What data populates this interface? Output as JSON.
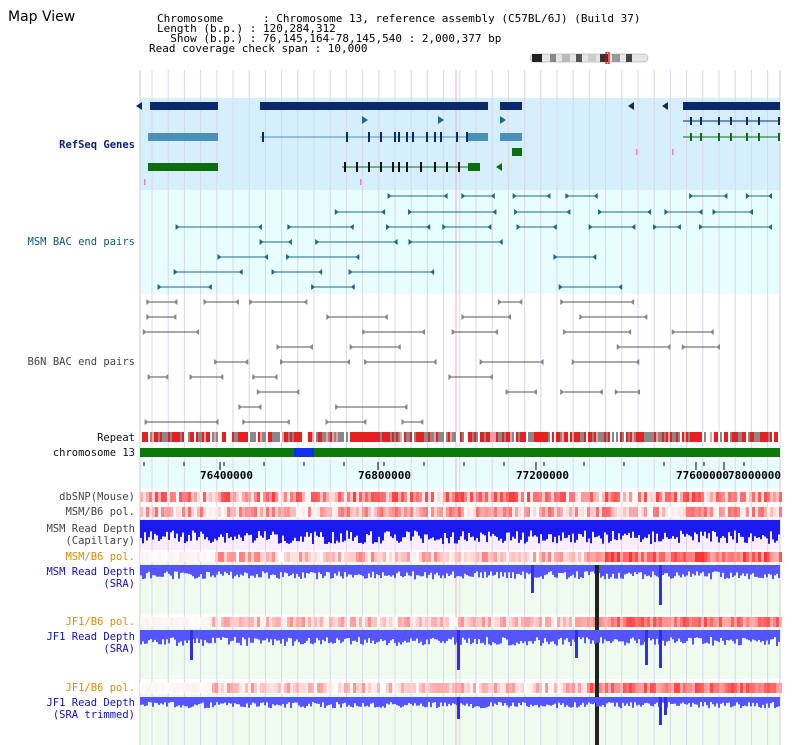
{
  "map_title": "Map View",
  "info": {
    "chromosome_line": "Chromosome      : Chromosome 13, reference assembly (C57BL/6J) (Build 37)",
    "length_line": "Length (b.p.) : 120,284,312",
    "show_line": "  Show (b.p.) : 76,145,164-78,145,540 : 2,000,377 bp",
    "span_line": "Read coverage check span : 10,000"
  },
  "tracks": {
    "refseq": "RefSeq Genes",
    "msm_bac": "MSM BAC end pairs",
    "b6n_bac": "B6N BAC end pairs",
    "repeat": "Repeat",
    "chromosome": "chromosome 13",
    "dbsnp": "dbSNP(Mouse)",
    "msm_pol1": "MSM/B6 pol.",
    "msm_cap_1": "MSM Read Depth",
    "msm_cap_2": "(Capillary)",
    "msm_pol2": "MSM/B6 pol.",
    "msm_sra_1": "MSM Read Depth",
    "msm_sra_2": "(SRA)",
    "jf1_pol1": "JF1/B6 pol.",
    "jf1_sra_1": "JF1 Read Depth",
    "jf1_sra_2": "(SRA)",
    "jf1_pol2": "JF1/B6 pol.",
    "jf1_trim_1": "JF1 Read Depth",
    "jf1_trim_2": "(SRA trimmed)"
  },
  "axis_ticks": [
    "76400000",
    "76800000",
    "77200000",
    "77600000",
    "78000000"
  ],
  "colors": {
    "refseq_bg": "#d6efff",
    "bac_bg": "#e8fdff",
    "gene_navy": "#0a2a6b",
    "gene_blue": "#4a90b8",
    "gene_green": "#0c6e0c",
    "bac_teal": "#1a6a86",
    "chrom_green": "#0a7a0a",
    "chrom_blue": "#1030f0",
    "depth_blue": "#5555ff",
    "snp_red": "#ee2222"
  }
}
